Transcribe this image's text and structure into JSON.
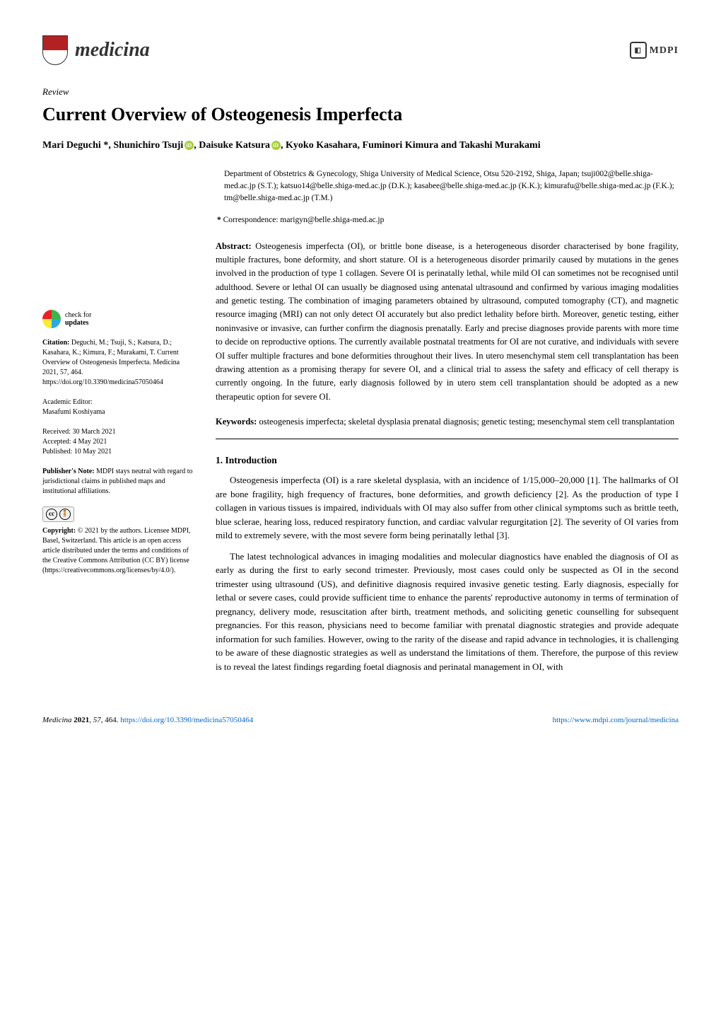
{
  "journal": {
    "name": "medicina",
    "logo_colors": {
      "shield_top": "#b22222",
      "shield_bottom": "#ffffff"
    }
  },
  "publisher": "MDPI",
  "article_type": "Review",
  "title": "Current Overview of Osteogenesis Imperfecta",
  "authors_line": "Mari Deguchi *, Shunichiro Tsuji , Daisuke Katsura , Kyoko Kasahara, Fuminori Kimura and Takashi Murakami",
  "authors": [
    {
      "name": "Mari Deguchi",
      "is_corresponding": true
    },
    {
      "name": "Shunichiro Tsuji",
      "orcid": true
    },
    {
      "name": "Daisuke Katsura",
      "orcid": true
    },
    {
      "name": "Kyoko Kasahara"
    },
    {
      "name": "Fuminori Kimura"
    },
    {
      "name": "Takashi Murakami"
    }
  ],
  "affiliation": "Department of Obstetrics & Gynecology, Shiga University of Medical Science, Otsu 520-2192, Shiga, Japan; tsuji002@belle.shiga-med.ac.jp (S.T.); katsuo14@belle.shiga-med.ac.jp (D.K.); kasabee@belle.shiga-med.ac.jp (K.K.); kimurafu@belle.shiga-med.ac.jp (F.K.); tm@belle.shiga-med.ac.jp (T.M.)",
  "correspondence_label": "*",
  "correspondence": "Correspondence: marigyn@belle.shiga-med.ac.jp",
  "abstract_label": "Abstract:",
  "abstract": "Osteogenesis imperfecta (OI), or brittle bone disease, is a heterogeneous disorder characterised by bone fragility, multiple fractures, bone deformity, and short stature. OI is a heterogeneous disorder primarily caused by mutations in the genes involved in the production of type 1 collagen. Severe OI is perinatally lethal, while mild OI can sometimes not be recognised until adulthood. Severe or lethal OI can usually be diagnosed using antenatal ultrasound and confirmed by various imaging modalities and genetic testing. The combination of imaging parameters obtained by ultrasound, computed tomography (CT), and magnetic resource imaging (MRI) can not only detect OI accurately but also predict lethality before birth. Moreover, genetic testing, either noninvasive or invasive, can further confirm the diagnosis prenatally. Early and precise diagnoses provide parents with more time to decide on reproductive options. The currently available postnatal treatments for OI are not curative, and individuals with severe OI suffer multiple fractures and bone deformities throughout their lives. In utero mesenchymal stem cell transplantation has been drawing attention as a promising therapy for severe OI, and a clinical trial to assess the safety and efficacy of cell therapy is currently ongoing. In the future, early diagnosis followed by in utero stem cell transplantation should be adopted as a new therapeutic option for severe OI.",
  "keywords_label": "Keywords:",
  "keywords": "osteogenesis imperfecta; skeletal dysplasia prenatal diagnosis; genetic testing; mesenchymal stem cell transplantation",
  "section1_heading": "1. Introduction",
  "section1_para1": "Osteogenesis imperfecta (OI) is a rare skeletal dysplasia, with an incidence of 1/15,000–20,000 [1]. The hallmarks of OI are bone fragility, high frequency of fractures, bone deformities, and growth deficiency [2]. As the production of type I collagen in various tissues is impaired, individuals with OI may also suffer from other clinical symptoms such as brittle teeth, blue sclerae, hearing loss, reduced respiratory function, and cardiac valvular regurgitation [2]. The severity of OI varies from mild to extremely severe, with the most severe form being perinatally lethal [3].",
  "section1_para2": "The latest technological advances in imaging modalities and molecular diagnostics have enabled the diagnosis of OI as early as during the first to early second trimester. Previously, most cases could only be suspected as OI in the second trimester using ultrasound (US), and definitive diagnosis required invasive genetic testing. Early diagnosis, especially for lethal or severe cases, could provide sufficient time to enhance the parents' reproductive autonomy in terms of termination of pregnancy, delivery mode, resuscitation after birth, treatment methods, and soliciting genetic counselling for subsequent pregnancies. For this reason, physicians need to become familiar with prenatal diagnostic strategies and provide adequate information for such families. However, owing to the rarity of the disease and rapid advance in technologies, it is challenging to be aware of these diagnostic strategies as well as understand the limitations of them. Therefore, the purpose of this review is to reveal the latest findings regarding foetal diagnosis and perinatal management in OI, with",
  "sidebar": {
    "check_updates": {
      "line1": "check for",
      "line2": "updates"
    },
    "citation_label": "Citation:",
    "citation": "Deguchi, M.; Tsuji, S.; Katsura, D.; Kasahara, K.; Kimura, F.; Murakami, T. Current Overview of Osteogenesis Imperfecta. Medicina 2021, 57, 464. https://doi.org/10.3390/medicina57050464",
    "editor_label": "Academic Editor:",
    "editor": "Masafumi Koshiyama",
    "received_label": "Received:",
    "received": "30 March 2021",
    "accepted_label": "Accepted:",
    "accepted": "4 May 2021",
    "published_label": "Published:",
    "published": "10 May 2021",
    "pub_note_label": "Publisher's Note:",
    "pub_note": "MDPI stays neutral with regard to jurisdictional claims in published maps and institutional affiliations.",
    "copyright_label": "Copyright:",
    "copyright": "© 2021 by the authors. Licensee MDPI, Basel, Switzerland. This article is an open access article distributed under the terms and conditions of the Creative Commons Attribution (CC BY) license (https://creativecommons.org/licenses/by/4.0/)."
  },
  "footer": {
    "left": "Medicina 2021, 57, 464. https://doi.org/10.3390/medicina57050464",
    "right": "https://www.mdpi.com/journal/medicina"
  },
  "colors": {
    "link": "#0066cc",
    "orcid": "#a6ce39",
    "crossref_q1": "#ec2027",
    "crossref_q2": "#3db54a",
    "crossref_q3": "#f9ec31",
    "crossref_q4": "#29aae1"
  }
}
